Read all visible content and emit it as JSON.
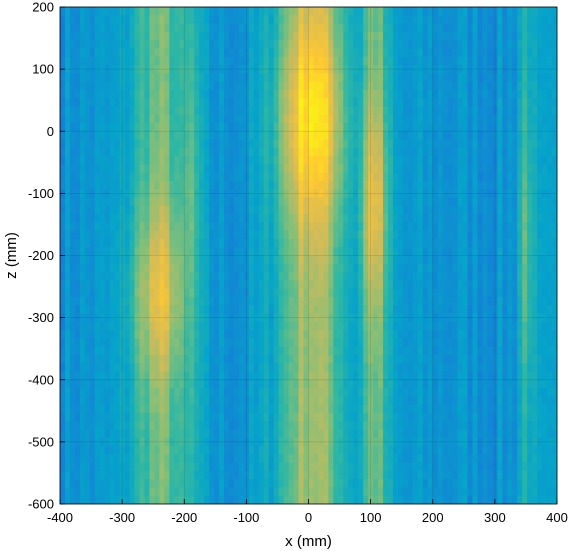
{
  "chart_data": {
    "type": "heatmap",
    "title": "",
    "xlabel": "x (mm)",
    "ylabel": "z (mm)",
    "xlim": [
      -400,
      400
    ],
    "ylim": [
      -600,
      200
    ],
    "x_ticks": [
      -400,
      -300,
      -200,
      -100,
      0,
      100,
      200,
      300,
      400
    ],
    "x_tick_labels": [
      "-400",
      "-300",
      "-200",
      "-100",
      "0",
      "100",
      "200",
      "300",
      "400"
    ],
    "y_ticks": [
      200,
      100,
      0,
      -100,
      -200,
      -300,
      -400,
      -500,
      -600
    ],
    "y_tick_labels": [
      "200",
      "100",
      "0",
      "-100",
      "-200",
      "-300",
      "-400",
      "-500",
      "-600"
    ],
    "grid": true,
    "colormap": "parula",
    "colormap_stops": [
      "#352a87",
      "#0f5cdd",
      "#1481d6",
      "#06a4ca",
      "#2eb7a4",
      "#87bf77",
      "#d1bb59",
      "#fec832",
      "#f9fb0e"
    ],
    "intensity_range": [
      0,
      1
    ],
    "bands": [
      {
        "center_x": -240,
        "width_x": 90,
        "peak_z": -260,
        "peak_intensity": 0.8,
        "z_spread": 140
      },
      {
        "center_x": -190,
        "width_x": 30,
        "peak_z": -150,
        "peak_intensity": 0.58,
        "z_spread": 250
      },
      {
        "center_x": 5,
        "width_x": 110,
        "peak_z": 20,
        "peak_intensity": 0.98,
        "z_spread": 170
      },
      {
        "center_x": 105,
        "width_x": 45,
        "peak_z": -120,
        "peak_intensity": 0.82,
        "z_spread": 170
      },
      {
        "center_x": 350,
        "width_x": 25,
        "peak_z": -180,
        "peak_intensity": 0.58,
        "z_spread": 200
      }
    ],
    "background_intensity": 0.32
  }
}
